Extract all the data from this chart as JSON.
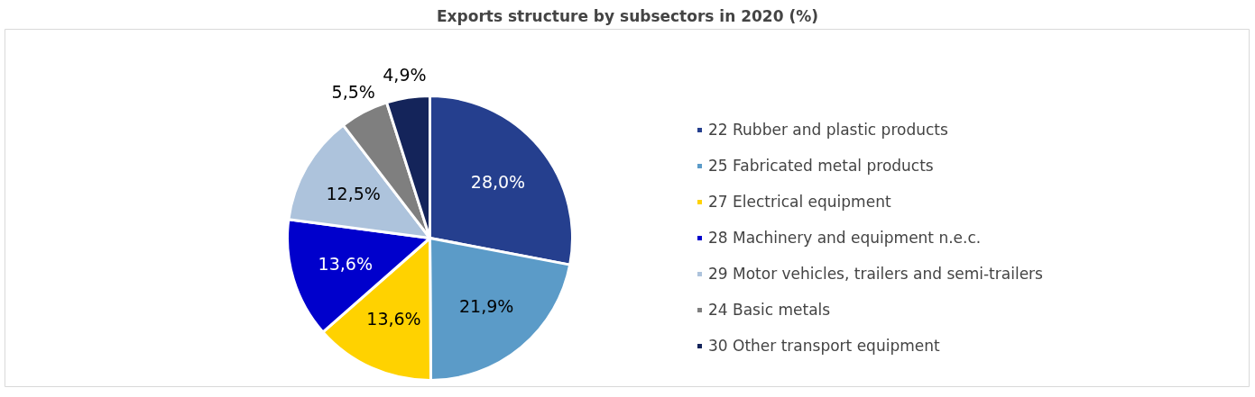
{
  "chart_data": {
    "type": "pie",
    "title": "Exports structure by subsectors in 2020 (%)",
    "categories": [
      "22 Rubber and plastic products",
      "25 Fabricated metal products",
      "27 Electrical equipment",
      "28 Machinery and equipment n.e.c.",
      "29 Motor vehicles, trailers and semi-trailers",
      "24 Basic metals",
      "30 Other transport equipment"
    ],
    "values": [
      28.0,
      21.9,
      13.6,
      13.6,
      12.5,
      5.5,
      4.9
    ],
    "value_labels": [
      "28,0%",
      "21,9%",
      "13,6%",
      "13,6%",
      "12,5%",
      "5,5%",
      "4,9%"
    ],
    "colors": [
      "#253f8e",
      "#5b9bc8",
      "#ffd200",
      "#0000cc",
      "#adc3dc",
      "#7f7f7f",
      "#14245a"
    ],
    "legend": "right"
  }
}
